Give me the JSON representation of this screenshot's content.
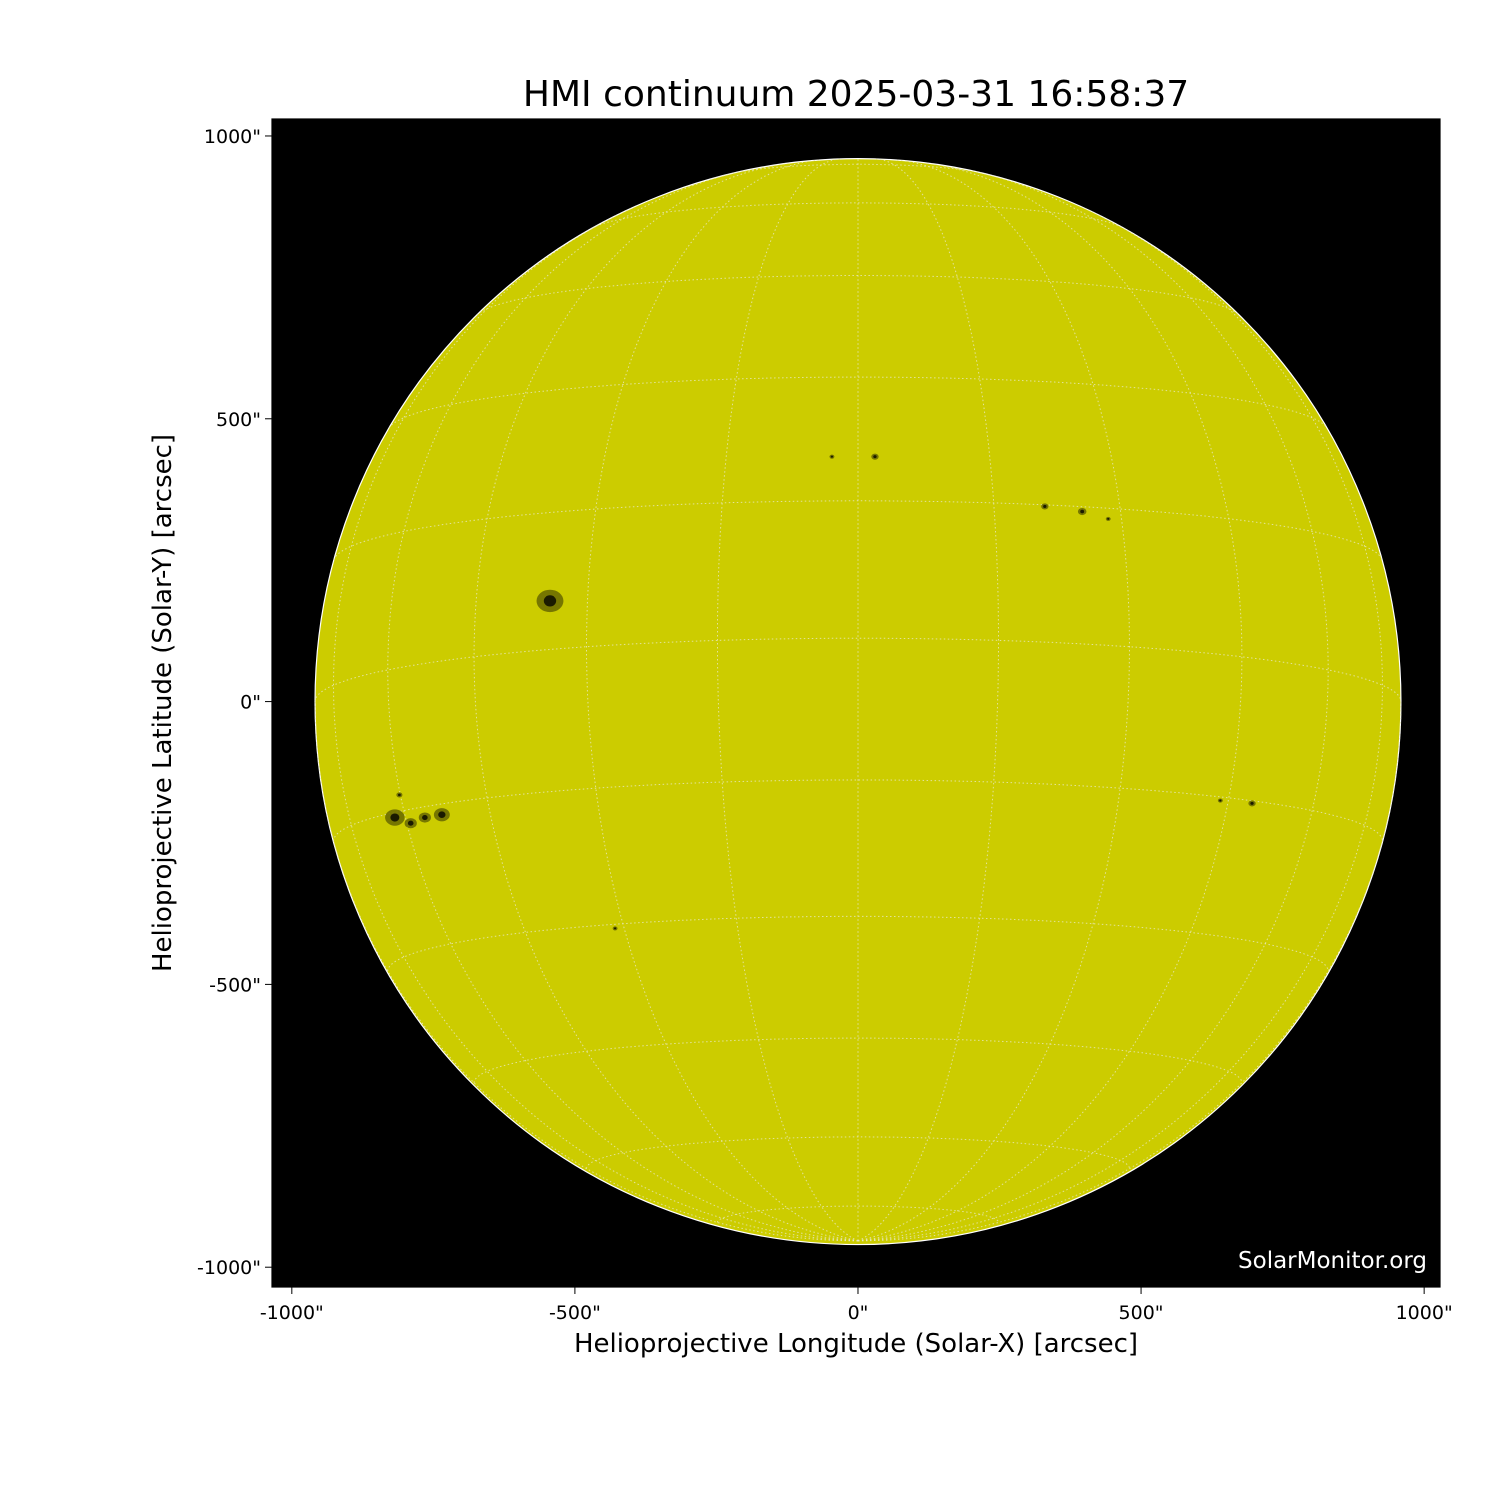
{
  "chart_data": {
    "type": "heatmap",
    "title": "HMI continuum 2025-03-31 16:58:37",
    "xlabel": "Helioprojective Longitude (Solar-X) [arcsec]",
    "ylabel": "Helioprojective Latitude (Solar-Y) [arcsec]",
    "xlim": [
      -1035,
      1028
    ],
    "ylim": [
      -1035,
      1030
    ],
    "xticks": [
      -1000,
      -500,
      0,
      500,
      1000
    ],
    "yticks": [
      -1000,
      -500,
      0,
      500,
      1000
    ],
    "xtick_labels": [
      "-1000\"",
      "-500\"",
      "0\"",
      "500\"",
      "1000\""
    ],
    "ytick_labels": [
      "-1000\"",
      "-500\"",
      "0\"",
      "500\"",
      "1000\""
    ],
    "solar_radius_arcsec": 959,
    "grid": "heliographic lat/lon every 15 degrees, dotted",
    "b0_deg": -6.7,
    "colors": {
      "disk": "#cccc00",
      "background": "#000000",
      "spot": "#1a1a00",
      "penumbra": "#666600",
      "grid": "#e8e8c0"
    },
    "sunspots": [
      {
        "x": -544,
        "y": 178,
        "size": 22
      },
      {
        "x": -818,
        "y": -205,
        "size": 16
      },
      {
        "x": -790,
        "y": -215,
        "size": 10
      },
      {
        "x": -765,
        "y": -205,
        "size": 10
      },
      {
        "x": -735,
        "y": -200,
        "size": 13
      },
      {
        "x": -810,
        "y": -165,
        "size": 5
      },
      {
        "x": 30,
        "y": 433,
        "size": 6
      },
      {
        "x": -46,
        "y": 433,
        "size": 4
      },
      {
        "x": 330,
        "y": 345,
        "size": 6
      },
      {
        "x": 396,
        "y": 336,
        "size": 7
      },
      {
        "x": 442,
        "y": 323,
        "size": 4
      },
      {
        "x": 696,
        "y": -180,
        "size": 6
      },
      {
        "x": 640,
        "y": -175,
        "size": 4
      },
      {
        "x": -429,
        "y": -401,
        "size": 4
      }
    ]
  },
  "watermark": "SolarMonitor.org"
}
